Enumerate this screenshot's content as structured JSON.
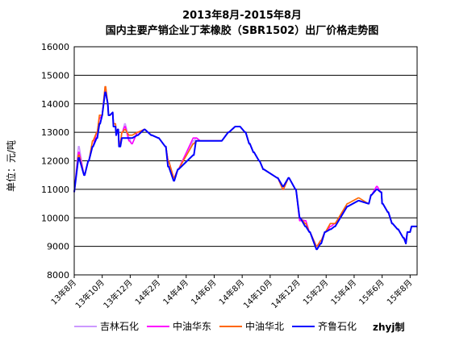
{
  "chart_data": {
    "type": "line",
    "title": "2013年8月-2015年8月",
    "subtitle": "国内主要产销企业丁苯橡胶（SBR1502）出厂价格走势图",
    "ylabel": "单位：元/吨",
    "xlabel": "",
    "ylim": [
      8000,
      16000
    ],
    "yticks": [
      8000,
      9000,
      10000,
      11000,
      12000,
      13000,
      14000,
      15000,
      16000
    ],
    "xlim": [
      0,
      24.5
    ],
    "x_tick_positions": [
      0,
      2,
      4,
      6,
      8,
      10,
      12,
      14,
      16,
      18,
      20,
      22,
      24
    ],
    "x_tick_labels": [
      "13年8月",
      "13年10月",
      "13年12月",
      "14年2月",
      "14年4月",
      "14年6月",
      "14年8月",
      "14年10月",
      "14年12月",
      "15年2月",
      "15年4月",
      "15年6月",
      "15年8月"
    ],
    "grid": true,
    "legend_position": "bottom",
    "watermark": "zhyj制",
    "series": [
      {
        "name": "吉林石化",
        "color": "#CC99FF",
        "x": [
          0,
          0.3,
          0.35,
          0.7,
          0.75,
          1.0,
          1.05,
          1.3,
          1.35,
          1.6,
          1.65,
          1.8,
          1.85,
          2.0,
          2.2,
          2.25,
          2.4,
          2.45,
          2.55,
          2.75,
          2.8,
          2.95,
          3.0,
          3.1,
          3.15,
          3.2,
          3.3,
          3.4,
          3.45,
          3.6,
          3.65,
          3.9,
          3.95,
          4.1,
          4.15,
          4.5,
          4.55,
          5.0,
          5.05,
          5.5,
          5.55,
          6.0,
          6.05,
          6.5,
          6.55,
          6.7,
          6.75,
          7.1,
          7.15,
          7.4,
          7.45,
          8.5,
          8.55,
          8.7,
          8.75,
          9.0,
          9.05,
          10.5,
          10.55,
          11.0,
          11.05,
          11.5,
          11.55,
          11.8,
          11.85,
          12.2,
          12.25,
          12.5,
          12.55,
          12.8,
          12.85,
          13.2,
          13.25,
          13.5,
          13.55,
          14.5,
          14.55,
          14.9,
          14.95,
          15.3,
          15.35,
          15.8,
          15.85,
          16.1,
          16.15,
          16.5,
          16.55,
          16.8,
          16.85,
          17.3,
          17.35,
          17.6,
          17.65,
          17.9,
          17.95,
          18.3,
          18.35,
          18.6,
          18.65,
          19.5,
          19.55,
          20.3,
          20.35,
          21.0,
          21.05,
          21.2,
          21.25,
          21.6,
          21.65,
          21.9,
          21.95,
          22.0,
          22.05,
          22.4,
          22.45,
          22.7,
          22.75,
          23.1,
          23.15,
          23.5,
          23.55,
          23.7,
          23.8,
          24.0,
          24.1,
          24.5
        ],
        "y": [
          10900,
          12500,
          12500,
          11500,
          11500,
          12000,
          12000,
          12500,
          12500,
          13000,
          13000,
          13500,
          13500,
          13600,
          14600,
          14600,
          14000,
          13600,
          13600,
          13700,
          13300,
          13300,
          12900,
          13100,
          13100,
          12600,
          12600,
          13000,
          13000,
          13300,
          13300,
          12800,
          12800,
          12600,
          12600,
          13000,
          13000,
          13100,
          13100,
          12900,
          12900,
          12800,
          12800,
          12500,
          12500,
          12000,
          12000,
          11400,
          11400,
          11700,
          11700,
          12700,
          12700,
          12800,
          12800,
          12700,
          12700,
          12700,
          12700,
          13000,
          13000,
          13200,
          13200,
          13200,
          13200,
          13000,
          13000,
          12600,
          12600,
          12300,
          12300,
          12000,
          12000,
          11700,
          11700,
          11400,
          11400,
          11000,
          11000,
          11400,
          11400,
          11000,
          11000,
          10000,
          10000,
          9900,
          9900,
          9500,
          9500,
          9000,
          9000,
          9200,
          9200,
          9500,
          9500,
          9800,
          9800,
          9800,
          9800,
          10400,
          10400,
          10600,
          10600,
          10500,
          10500,
          10800,
          10800,
          11100,
          11100,
          10900,
          10900,
          10500,
          10500,
          10200,
          10200,
          9800,
          9800,
          9600,
          9600,
          9300,
          9300,
          9200,
          9500,
          9500,
          9700,
          9700
        ]
      },
      {
        "name": "中油华东",
        "color": "#FF00FF",
        "x": [
          0,
          0.3,
          0.35,
          0.7,
          0.75,
          1.0,
          1.05,
          1.3,
          1.35,
          1.6,
          1.65,
          1.8,
          1.85,
          2.0,
          2.2,
          2.25,
          2.4,
          2.45,
          2.55,
          2.75,
          2.8,
          2.95,
          3.0,
          3.1,
          3.15,
          3.2,
          3.3,
          3.4,
          3.45,
          3.6,
          3.65,
          3.9,
          3.95,
          4.1,
          4.15,
          4.5,
          4.55,
          5.0,
          5.05,
          5.5,
          5.55,
          6.0,
          6.05,
          6.5,
          6.55,
          6.7,
          6.75,
          7.1,
          7.15,
          7.4,
          7.45,
          8.5,
          8.55,
          8.7,
          8.75,
          9.0,
          9.05,
          10.5,
          10.55,
          11.0,
          11.05,
          11.5,
          11.55,
          11.8,
          11.85,
          12.2,
          12.25,
          12.5,
          12.55,
          12.8,
          12.85,
          13.2,
          13.25,
          13.5,
          13.55,
          14.5,
          14.55,
          14.9,
          14.95,
          15.3,
          15.35,
          15.8,
          15.85,
          16.1,
          16.15,
          16.5,
          16.55,
          16.8,
          16.85,
          17.3,
          17.35,
          17.6,
          17.65,
          17.9,
          17.95,
          18.3,
          18.35,
          18.6,
          18.65,
          19.5,
          19.55,
          20.3,
          20.35,
          21.0,
          21.05,
          21.2,
          21.25,
          21.6,
          21.65,
          21.9,
          21.95,
          22.0,
          22.05,
          22.4,
          22.45,
          22.7,
          22.75,
          23.1,
          23.15,
          23.5,
          23.55,
          23.7,
          23.8,
          24.0,
          24.1,
          24.5
        ],
        "y": [
          10900,
          12300,
          12300,
          11500,
          11500,
          12000,
          12000,
          12500,
          12500,
          13000,
          13000,
          13500,
          13500,
          13600,
          14500,
          14500,
          14000,
          13600,
          13600,
          13700,
          13300,
          13300,
          12900,
          13100,
          13100,
          12600,
          12600,
          13000,
          13000,
          13200,
          13200,
          12700,
          12700,
          12600,
          12600,
          13000,
          13000,
          13100,
          13100,
          12900,
          12900,
          12800,
          12800,
          12500,
          12500,
          12000,
          12000,
          11400,
          11400,
          11700,
          11700,
          12800,
          12800,
          12800,
          12800,
          12700,
          12700,
          12700,
          12700,
          13000,
          13000,
          13200,
          13200,
          13200,
          13200,
          13000,
          13000,
          12600,
          12600,
          12300,
          12300,
          12000,
          12000,
          11700,
          11700,
          11400,
          11400,
          11000,
          11000,
          11400,
          11400,
          11000,
          11000,
          9900,
          9900,
          9900,
          9900,
          9500,
          9500,
          9000,
          9000,
          9200,
          9200,
          9500,
          9500,
          9700,
          9700,
          9800,
          9800,
          10400,
          10400,
          10600,
          10600,
          10500,
          10500,
          10800,
          10800,
          11100,
          11100,
          10900,
          10900,
          10500,
          10500,
          10200,
          10200,
          9800,
          9800,
          9600,
          9600,
          9300,
          9300,
          9200,
          9500,
          9500,
          9700,
          9700
        ]
      },
      {
        "name": "中油华北",
        "color": "#FF6600",
        "x": [
          0,
          0.3,
          0.35,
          0.7,
          0.75,
          1.0,
          1.05,
          1.3,
          1.35,
          1.6,
          1.65,
          1.8,
          1.85,
          2.0,
          2.2,
          2.25,
          2.4,
          2.45,
          2.55,
          2.75,
          2.8,
          2.95,
          3.0,
          3.1,
          3.15,
          3.2,
          3.3,
          3.4,
          3.45,
          3.6,
          3.65,
          3.9,
          3.95,
          4.1,
          4.15,
          4.5,
          4.55,
          5.0,
          5.05,
          5.5,
          5.55,
          6.0,
          6.05,
          6.5,
          6.55,
          6.7,
          6.75,
          7.1,
          7.15,
          7.4,
          7.45,
          8.5,
          8.55,
          8.7,
          8.75,
          9.0,
          9.05,
          10.5,
          10.55,
          11.0,
          11.05,
          11.5,
          11.55,
          11.8,
          11.85,
          12.2,
          12.25,
          12.5,
          12.55,
          12.8,
          12.85,
          13.2,
          13.25,
          13.5,
          13.55,
          14.5,
          14.55,
          14.9,
          14.95,
          15.3,
          15.35,
          15.8,
          15.85,
          16.1,
          16.15,
          16.5,
          16.55,
          16.8,
          16.85,
          17.3,
          17.35,
          17.6,
          17.65,
          17.9,
          17.95,
          18.3,
          18.35,
          18.6,
          18.65,
          19.5,
          19.55,
          20.3,
          20.35,
          21.0,
          21.05,
          21.2,
          21.25,
          21.6,
          21.65,
          21.9,
          21.95,
          22.0,
          22.05,
          22.4,
          22.45,
          22.7,
          22.75,
          23.1,
          23.15,
          23.5,
          23.55,
          23.7,
          23.8,
          24.0,
          24.1,
          24.5
        ],
        "y": [
          10900,
          12200,
          12200,
          11500,
          11500,
          12000,
          12000,
          12700,
          12700,
          13000,
          13000,
          13600,
          13600,
          13600,
          14600,
          14600,
          14000,
          13600,
          13600,
          13700,
          13300,
          13300,
          12900,
          13100,
          13100,
          12600,
          12600,
          13000,
          13000,
          13100,
          13100,
          12900,
          12900,
          12900,
          12900,
          13000,
          13000,
          13100,
          13100,
          12900,
          12900,
          12800,
          12800,
          12500,
          12500,
          12000,
          12000,
          11400,
          11400,
          11700,
          11700,
          12600,
          12600,
          12700,
          12700,
          12700,
          12700,
          12700,
          12700,
          13000,
          13000,
          13200,
          13200,
          13200,
          13200,
          13000,
          13000,
          12600,
          12600,
          12300,
          12300,
          12000,
          12000,
          11700,
          11700,
          11400,
          11400,
          11000,
          11000,
          11400,
          11400,
          11000,
          11000,
          10000,
          10000,
          9800,
          9800,
          9500,
          9500,
          9000,
          9000,
          9200,
          9200,
          9500,
          9500,
          9800,
          9800,
          9800,
          9800,
          10500,
          10500,
          10700,
          10700,
          10500,
          10500,
          10800,
          10800,
          11000,
          11000,
          10900,
          10900,
          10500,
          10500,
          10200,
          10200,
          9800,
          9800,
          9600,
          9600,
          9300,
          9300,
          9100,
          9500,
          9500,
          9700,
          9700
        ]
      },
      {
        "name": "齐鲁石化",
        "color": "#0000FF",
        "x": [
          0,
          0.3,
          0.35,
          0.7,
          0.75,
          1.0,
          1.05,
          1.3,
          1.35,
          1.6,
          1.65,
          1.8,
          1.85,
          2.0,
          2.2,
          2.25,
          2.4,
          2.45,
          2.55,
          2.75,
          2.8,
          2.95,
          3.0,
          3.1,
          3.15,
          3.2,
          3.3,
          3.4,
          3.45,
          3.6,
          3.65,
          3.9,
          3.95,
          4.1,
          4.15,
          4.5,
          4.55,
          5.0,
          5.05,
          5.5,
          5.55,
          6.0,
          6.05,
          6.5,
          6.55,
          6.7,
          6.75,
          7.1,
          7.15,
          7.4,
          7.45,
          8.5,
          8.55,
          8.7,
          8.75,
          9.0,
          9.05,
          10.5,
          10.55,
          11.0,
          11.05,
          11.5,
          11.55,
          11.8,
          11.85,
          12.2,
          12.25,
          12.5,
          12.55,
          12.8,
          12.85,
          13.2,
          13.25,
          13.5,
          13.55,
          14.5,
          14.55,
          14.9,
          14.95,
          15.3,
          15.35,
          15.8,
          15.85,
          16.1,
          16.15,
          16.5,
          16.55,
          16.8,
          16.85,
          17.3,
          17.35,
          17.6,
          17.65,
          17.9,
          17.95,
          18.3,
          18.35,
          18.6,
          18.65,
          19.5,
          19.55,
          20.3,
          20.35,
          21.0,
          21.05,
          21.2,
          21.25,
          21.6,
          21.65,
          21.9,
          21.95,
          22.0,
          22.05,
          22.4,
          22.45,
          22.7,
          22.75,
          23.1,
          23.15,
          23.5,
          23.55,
          23.7,
          23.8,
          24.0,
          24.1,
          24.5
        ],
        "y": [
          10900,
          12100,
          12100,
          11500,
          11500,
          12000,
          12000,
          12500,
          12500,
          12800,
          12800,
          13300,
          13300,
          13600,
          14400,
          14400,
          14000,
          13600,
          13600,
          13700,
          13200,
          13200,
          12900,
          13100,
          13100,
          12500,
          12500,
          12800,
          12800,
          12800,
          12800,
          12800,
          12800,
          12800,
          12800,
          12900,
          12900,
          13100,
          13100,
          12900,
          12900,
          12800,
          12800,
          12500,
          12500,
          11800,
          11800,
          11300,
          11300,
          11700,
          11700,
          12200,
          12200,
          12700,
          12700,
          12700,
          12700,
          12700,
          12700,
          13000,
          13000,
          13200,
          13200,
          13200,
          13200,
          13000,
          13000,
          12600,
          12600,
          12300,
          12300,
          12000,
          12000,
          11700,
          11700,
          11400,
          11400,
          11100,
          11100,
          11400,
          11400,
          11000,
          11000,
          10000,
          10000,
          9700,
          9700,
          9500,
          9500,
          8900,
          8900,
          9100,
          9100,
          9500,
          9500,
          9600,
          9600,
          9700,
          9700,
          10400,
          10400,
          10600,
          10600,
          10500,
          10500,
          10800,
          10800,
          11000,
          11000,
          10900,
          10900,
          10500,
          10500,
          10200,
          10200,
          9800,
          9800,
          9600,
          9600,
          9300,
          9300,
          9100,
          9500,
          9500,
          9700,
          9700
        ]
      }
    ]
  }
}
